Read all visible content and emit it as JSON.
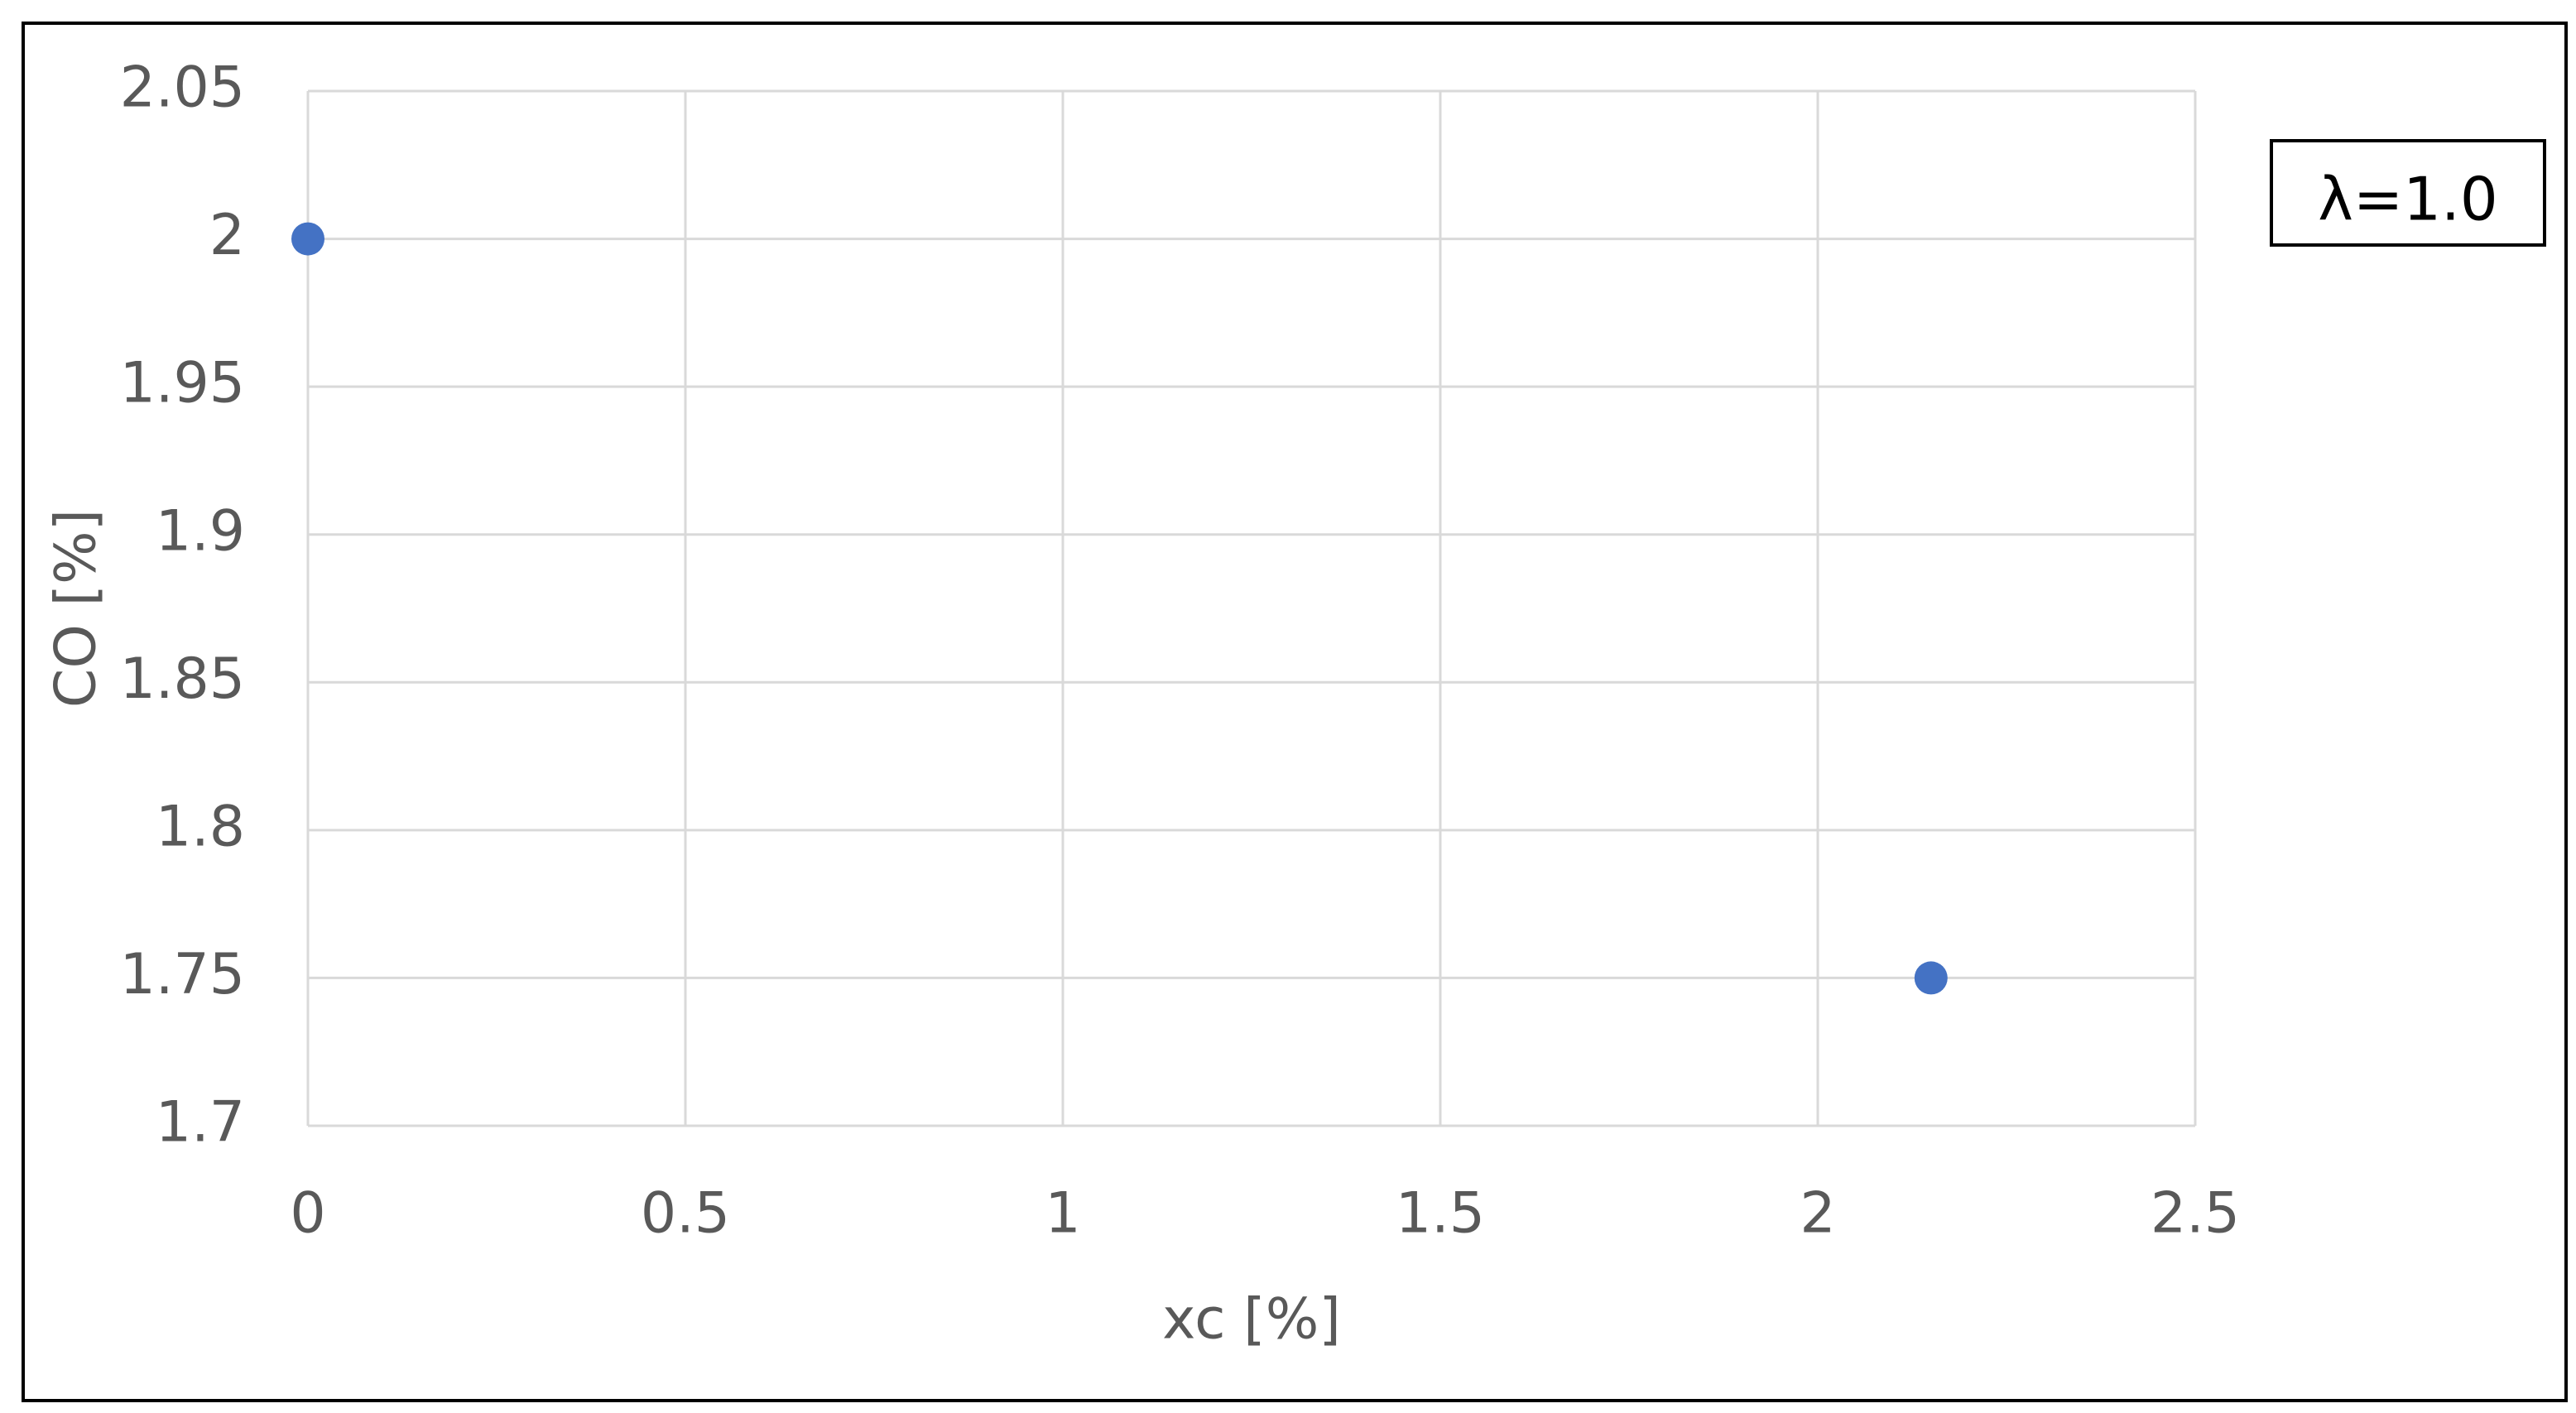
{
  "chart_data": {
    "type": "scatter",
    "x_label": "xc [%]",
    "y_label": "CO [%]",
    "annotation": "λ=1.0",
    "x": [
      0,
      2.15
    ],
    "values": [
      2.0,
      1.75
    ],
    "color": "#4472c4",
    "xlim": [
      0,
      2.5
    ],
    "xticks": [
      0,
      0.5,
      1,
      1.5,
      2,
      2.5
    ],
    "ylim": [
      1.7,
      2.05
    ],
    "yticks": [
      1.7,
      1.75,
      1.8,
      1.85,
      1.9,
      1.95,
      2,
      2.05
    ],
    "grid": true
  }
}
